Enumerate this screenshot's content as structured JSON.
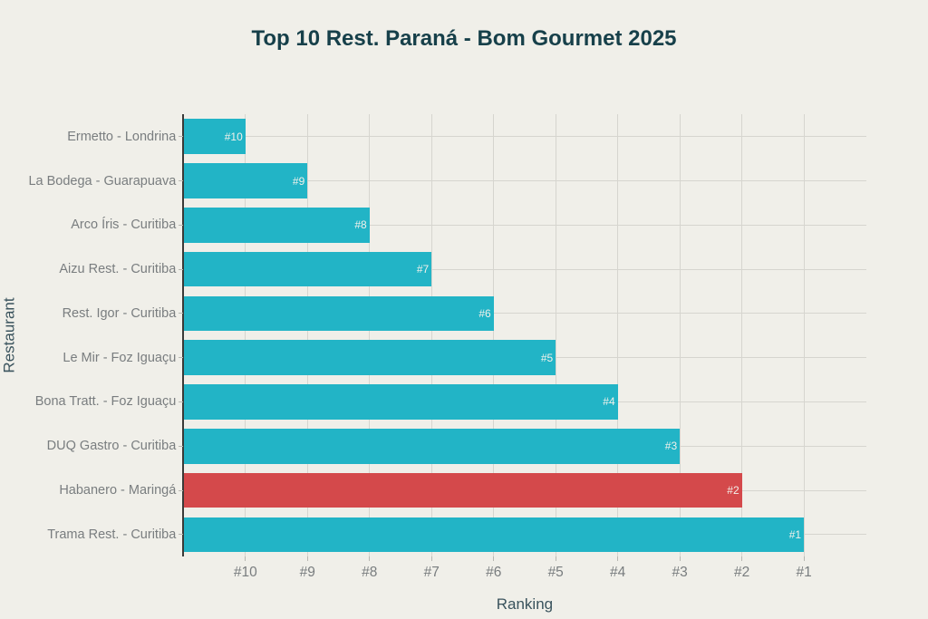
{
  "chart_data": {
    "type": "bar",
    "orientation": "horizontal",
    "title": "Top 10 Rest. Paraná - Bom Gourmet 2025",
    "xlabel": "Ranking",
    "ylabel": "Restaurant",
    "categories": [
      "Ermetto - Londrina",
      "La Bodega - Guarapuava",
      "Arco Íris - Curitiba",
      "Aizu Rest. - Curitiba",
      "Rest. Igor - Curitiba",
      "Le Mir - Foz Iguaçu",
      "Bona Tratt. - Foz Iguaçu",
      "DUQ Gastro - Curitiba",
      "Habanero - Maringá",
      "Trama Rest. - Curitiba"
    ],
    "ranks": [
      10,
      9,
      8,
      7,
      6,
      5,
      4,
      3,
      2,
      1
    ],
    "values": [
      1,
      2,
      3,
      4,
      5,
      6,
      7,
      8,
      9,
      10
    ],
    "bar_labels": [
      "#10",
      "#9",
      "#8",
      "#7",
      "#6",
      "#5",
      "#4",
      "#3",
      "#2",
      "#1"
    ],
    "highlighted_category": "Habanero - Maringá",
    "highlighted_index": 8,
    "x_ticks": {
      "values": [
        1,
        2,
        3,
        4,
        5,
        6,
        7,
        8,
        9,
        10
      ],
      "labels": [
        "#10",
        "#9",
        "#8",
        "#7",
        "#6",
        "#5",
        "#4",
        "#3",
        "#2",
        "#1"
      ]
    },
    "xlim": [
      0,
      11
    ],
    "grid": true,
    "legend": false,
    "colors": {
      "background": "#f0efe9",
      "bar": "#22b4c6",
      "bar_highlight": "#d4494b",
      "bar_label_text": "#f2f1eb",
      "gridline": "#d6d5cf",
      "spine": "#3a3a38",
      "tick_mark": "#b8b8b2",
      "tick_label_text": "#797d7f",
      "axis_label_text": "#3a535d",
      "title_text": "#17404a"
    }
  }
}
